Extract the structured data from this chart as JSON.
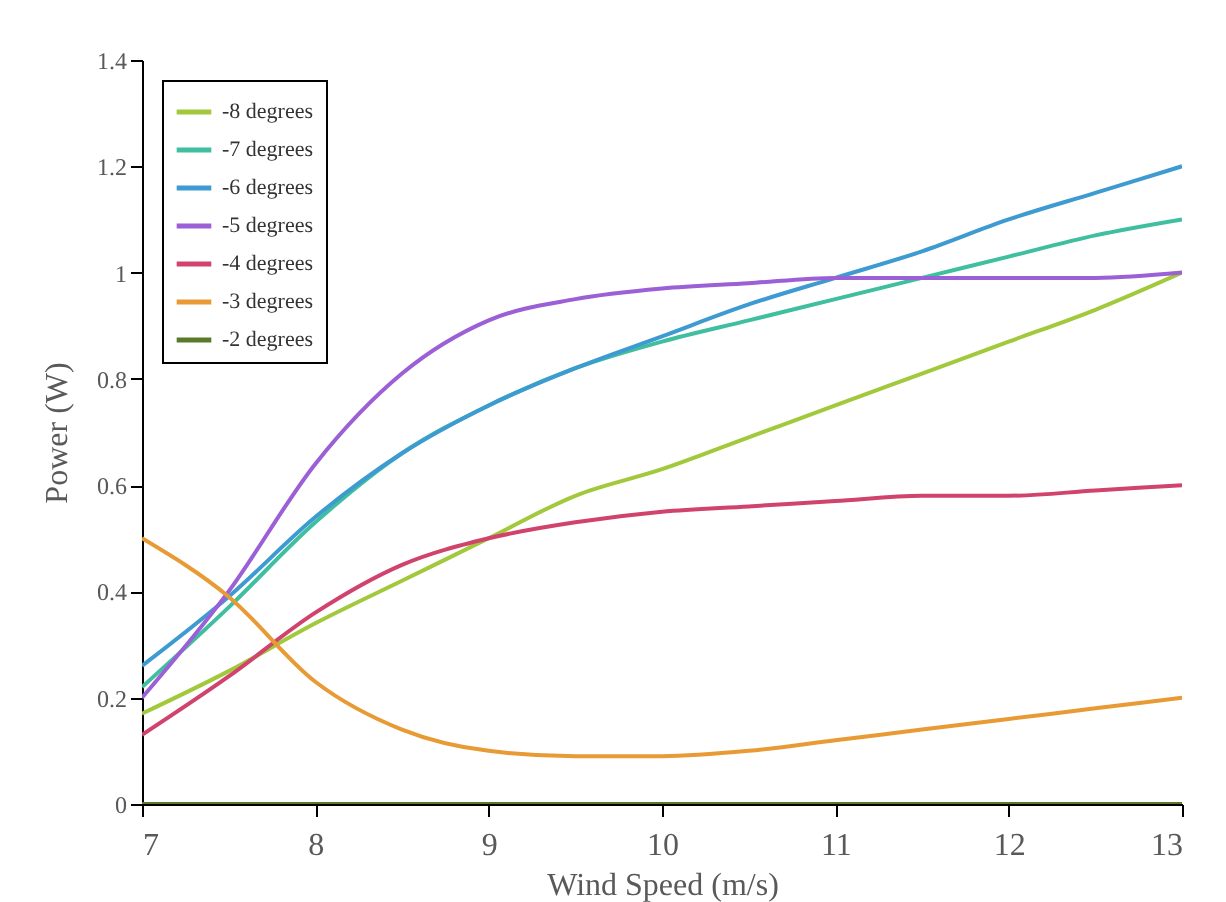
{
  "chart_data": {
    "type": "line",
    "xlabel": "Wind Speed (m/s)",
    "ylabel": "Power (W)",
    "x": [
      7,
      7.5,
      8,
      8.5,
      9,
      9.5,
      10,
      10.5,
      11,
      11.5,
      12,
      12.5,
      13
    ],
    "xlim": [
      7,
      13
    ],
    "xticks": [
      7,
      8,
      9,
      10,
      11,
      12,
      13
    ],
    "ylim": [
      0,
      1.4
    ],
    "yticks": [
      0,
      0.2,
      0.4,
      0.6,
      0.8,
      1,
      1.2,
      1.4
    ],
    "grid": false,
    "legend": "top left",
    "marker": "none",
    "line_style": "solid",
    "series": [
      {
        "name": "-8 degrees",
        "color": "#a2c83c",
        "values": [
          0.17,
          0.25,
          0.34,
          0.42,
          0.5,
          0.58,
          0.63,
          0.69,
          0.75,
          0.81,
          0.87,
          0.93,
          1.0
        ]
      },
      {
        "name": "-7 degrees",
        "color": "#3fbf9f",
        "values": [
          0.22,
          0.37,
          0.53,
          0.66,
          0.75,
          0.82,
          0.87,
          0.91,
          0.95,
          0.99,
          1.03,
          1.07,
          1.1
        ]
      },
      {
        "name": "-6 degrees",
        "color": "#3d9bd1",
        "values": [
          0.26,
          0.39,
          0.54,
          0.66,
          0.75,
          0.82,
          0.88,
          0.94,
          0.99,
          1.04,
          1.1,
          1.15,
          1.2
        ]
      },
      {
        "name": "-5 degrees",
        "color": "#9b5fd6",
        "values": [
          0.2,
          0.4,
          0.64,
          0.81,
          0.91,
          0.95,
          0.97,
          0.98,
          0.99,
          0.99,
          0.99,
          0.99,
          1.0
        ]
      },
      {
        "name": "-4 degrees",
        "color": "#d0436c",
        "values": [
          0.13,
          0.24,
          0.36,
          0.45,
          0.5,
          0.53,
          0.55,
          0.56,
          0.57,
          0.58,
          0.58,
          0.59,
          0.6
        ]
      },
      {
        "name": "-3 degrees",
        "color": "#e89a35",
        "values": [
          0.5,
          0.39,
          0.23,
          0.14,
          0.1,
          0.09,
          0.09,
          0.1,
          0.12,
          0.14,
          0.16,
          0.18,
          0.2
        ]
      },
      {
        "name": "-2 degrees",
        "color": "#5a7a2a",
        "values": [
          0,
          0,
          0,
          0,
          0,
          0,
          0,
          0,
          0,
          0,
          0,
          0,
          0
        ]
      }
    ]
  }
}
